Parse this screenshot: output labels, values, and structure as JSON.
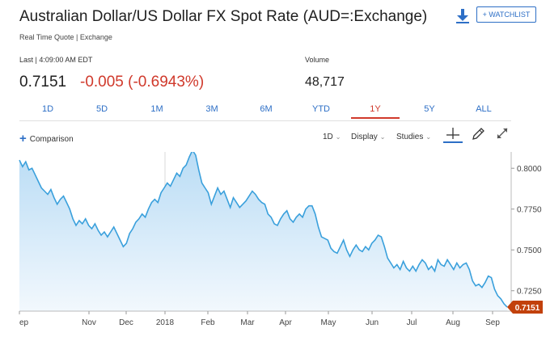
{
  "header": {
    "title": "Australian Dollar/US Dollar FX Spot Rate (AUD=:Exchange)",
    "subtitle": "Real Time Quote | Exchange",
    "watchlist_label": "+ WATCHLIST",
    "download_icon": "download-icon"
  },
  "quote": {
    "last_label": "Last | 4:09:00 AM EDT",
    "price": "0.7151",
    "change": "-0.005 (-0.6943%)",
    "change_color": "#d0392b",
    "volume_label": "Volume",
    "volume_value": "48,717"
  },
  "tabs": [
    {
      "label": "1D",
      "active": false
    },
    {
      "label": "5D",
      "active": false
    },
    {
      "label": "1M",
      "active": false
    },
    {
      "label": "3M",
      "active": false
    },
    {
      "label": "6M",
      "active": false
    },
    {
      "label": "YTD",
      "active": false
    },
    {
      "label": "1Y",
      "active": true
    },
    {
      "label": "5Y",
      "active": false
    },
    {
      "label": "ALL",
      "active": false
    }
  ],
  "controls": {
    "comparison_label": "Comparison",
    "interval_label": "1D",
    "display_label": "Display",
    "studies_label": "Studies",
    "tools": [
      "crosshair-icon",
      "draw-pencil-icon",
      "expand-icon"
    ]
  },
  "chart_data": {
    "type": "area",
    "title": "",
    "xlabel": "",
    "ylabel": "",
    "x_ticks": [
      "ep",
      "Nov",
      "Dec",
      "2018",
      "Feb",
      "Mar",
      "Apr",
      "May",
      "Jun",
      "Jul",
      "Aug",
      "Sep"
    ],
    "y_ticks": [
      "0.8000",
      "0.7750",
      "0.7500",
      "0.7250"
    ],
    "ylim": [
      0.7125,
      0.81
    ],
    "last_price_label": "0.7151",
    "line_color": "#3aa0dc",
    "fill_color": "#d6ebf9",
    "last_tag_color": "#c2410c",
    "grid": false,
    "values": [
      0.805,
      0.801,
      0.804,
      0.799,
      0.8,
      0.796,
      0.792,
      0.788,
      0.786,
      0.784,
      0.787,
      0.782,
      0.778,
      0.781,
      0.783,
      0.779,
      0.775,
      0.769,
      0.765,
      0.768,
      0.766,
      0.769,
      0.765,
      0.763,
      0.766,
      0.762,
      0.759,
      0.761,
      0.758,
      0.761,
      0.764,
      0.76,
      0.756,
      0.752,
      0.754,
      0.76,
      0.763,
      0.767,
      0.769,
      0.772,
      0.77,
      0.775,
      0.779,
      0.781,
      0.779,
      0.785,
      0.788,
      0.791,
      0.789,
      0.793,
      0.797,
      0.795,
      0.8,
      0.802,
      0.807,
      0.811,
      0.808,
      0.799,
      0.791,
      0.788,
      0.785,
      0.778,
      0.783,
      0.788,
      0.784,
      0.786,
      0.781,
      0.776,
      0.782,
      0.779,
      0.776,
      0.778,
      0.78,
      0.783,
      0.786,
      0.784,
      0.781,
      0.779,
      0.778,
      0.772,
      0.77,
      0.766,
      0.765,
      0.769,
      0.772,
      0.774,
      0.769,
      0.767,
      0.77,
      0.772,
      0.77,
      0.775,
      0.777,
      0.777,
      0.772,
      0.764,
      0.758,
      0.757,
      0.756,
      0.751,
      0.749,
      0.748,
      0.752,
      0.756,
      0.75,
      0.746,
      0.75,
      0.753,
      0.75,
      0.749,
      0.752,
      0.75,
      0.754,
      0.756,
      0.759,
      0.758,
      0.752,
      0.745,
      0.742,
      0.739,
      0.741,
      0.738,
      0.743,
      0.739,
      0.737,
      0.74,
      0.737,
      0.741,
      0.744,
      0.742,
      0.738,
      0.74,
      0.737,
      0.744,
      0.741,
      0.74,
      0.744,
      0.741,
      0.738,
      0.742,
      0.739,
      0.741,
      0.742,
      0.738,
      0.731,
      0.728,
      0.729,
      0.727,
      0.73,
      0.734,
      0.733,
      0.726,
      0.722,
      0.72,
      0.717,
      0.715
    ]
  }
}
